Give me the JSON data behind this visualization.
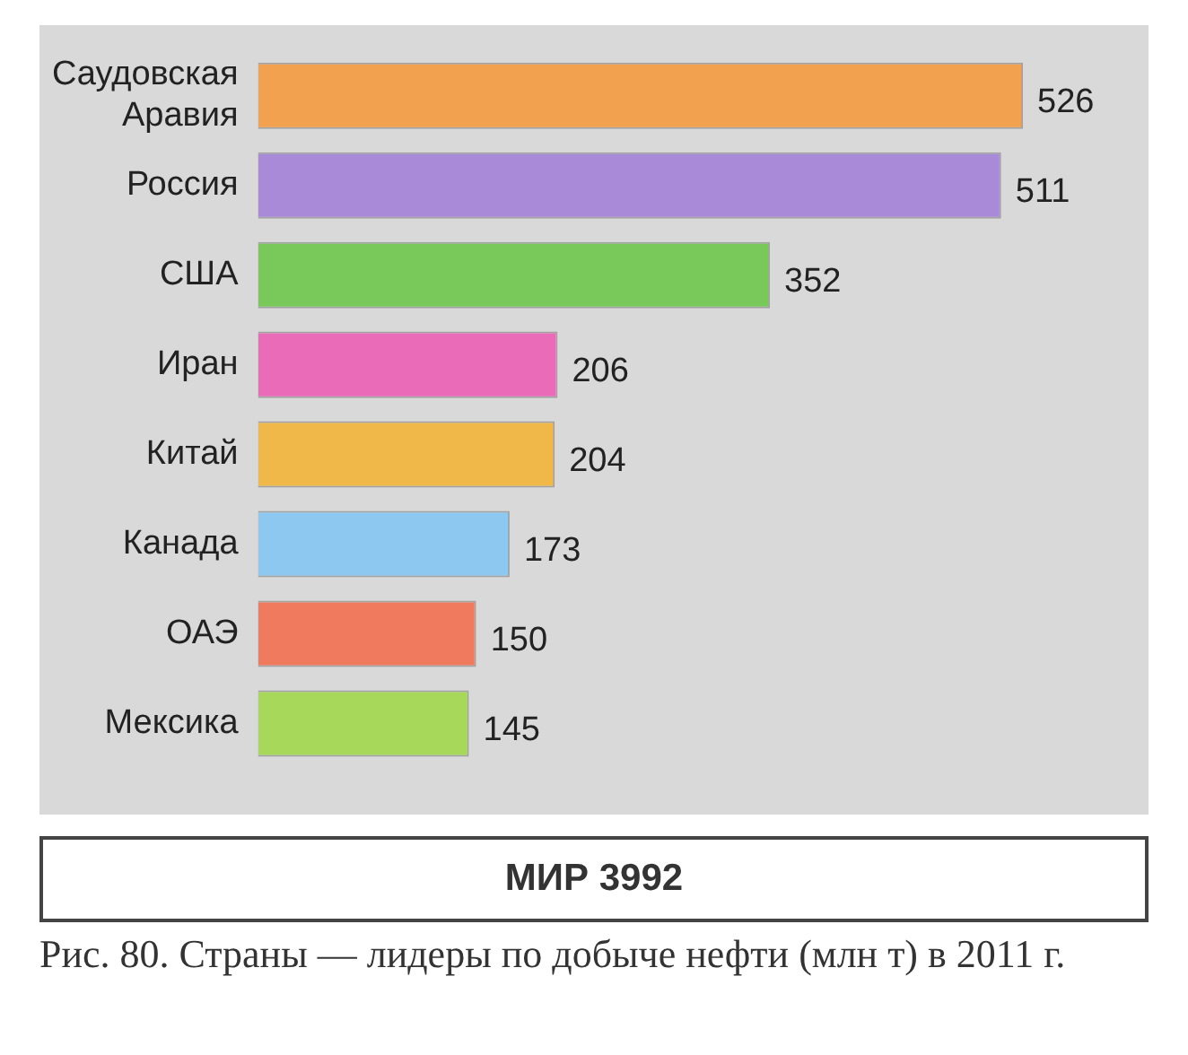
{
  "chart_data": {
    "type": "bar",
    "orientation": "horizontal",
    "categories": [
      "Саудовская Аравия",
      "Россия",
      "США",
      "Иран",
      "Китай",
      "Канада",
      "ОАЭ",
      "Мексика"
    ],
    "values": [
      526,
      511,
      352,
      206,
      204,
      173,
      150,
      145
    ],
    "colors": [
      "#f2a24e",
      "#a88ad8",
      "#78c85a",
      "#ea6cb8",
      "#f0b848",
      "#8cc8f0",
      "#f07a5e",
      "#a8d85a"
    ],
    "data_labels": true,
    "legend": false,
    "annotations": [
      "МИР 3992",
      "Рис. 80. Страны — лидеры по добыче нефти (млн т) в 2011 г."
    ]
  }
}
